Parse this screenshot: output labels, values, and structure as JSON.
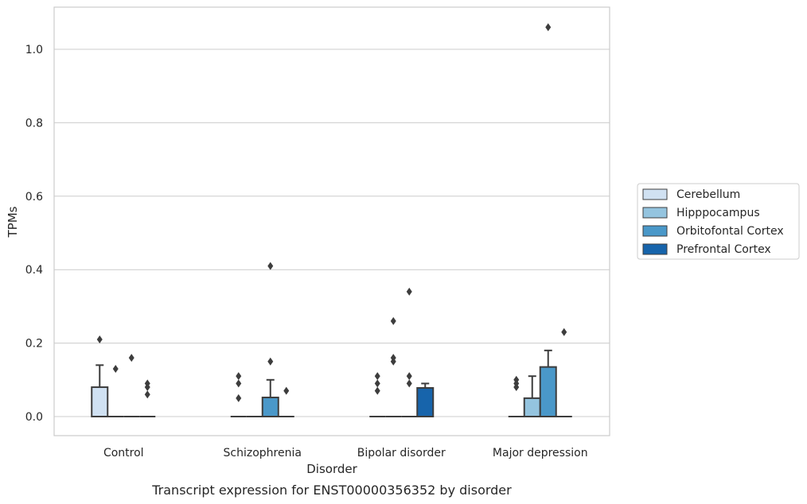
{
  "chart_data": {
    "type": "box",
    "title": "",
    "caption": "Transcript expression for ENST00000356352 by disorder",
    "xlabel": "Disorder",
    "ylabel": "TPMs",
    "ylim": [
      -0.05,
      1.115
    ],
    "yticks": [
      0.0,
      0.2,
      0.4,
      0.6,
      0.8,
      1.0
    ],
    "ytick_labels": [
      "0.0",
      "0.2",
      "0.4",
      "0.6",
      "0.8",
      "1.0"
    ],
    "grid": "horizontal",
    "legend_position": "right",
    "categories": [
      "Control",
      "Schizophrenia",
      "Bipolar disorder",
      "Major depression"
    ],
    "series": [
      {
        "name": "Cerebellum",
        "color": "#d0e1f2",
        "boxes": [
          {
            "q1": 0.0,
            "median": 0.0,
            "q3": 0.08,
            "whisker_low": 0.0,
            "whisker_high": 0.14,
            "outliers": [
              0.21
            ]
          },
          {
            "q1": 0.0,
            "median": 0.0,
            "q3": 0.0,
            "whisker_low": 0.0,
            "whisker_high": 0.0,
            "outliers": [
              0.11,
              0.09,
              0.05
            ]
          },
          {
            "q1": 0.0,
            "median": 0.0,
            "q3": 0.0,
            "whisker_low": 0.0,
            "whisker_high": 0.0,
            "outliers": [
              0.11,
              0.09,
              0.07
            ]
          },
          {
            "q1": 0.0,
            "median": 0.0,
            "q3": 0.0,
            "whisker_low": 0.0,
            "whisker_high": 0.0,
            "outliers": [
              0.1,
              0.09,
              0.08
            ]
          }
        ]
      },
      {
        "name": "Hipppocampus",
        "color": "#94c4df",
        "boxes": [
          {
            "q1": 0.0,
            "median": 0.0,
            "q3": 0.0,
            "whisker_low": 0.0,
            "whisker_high": 0.0,
            "outliers": [
              0.13
            ]
          },
          {
            "q1": 0.0,
            "median": 0.0,
            "q3": 0.0,
            "whisker_low": 0.0,
            "whisker_high": 0.0,
            "outliers": []
          },
          {
            "q1": 0.0,
            "median": 0.0,
            "q3": 0.0,
            "whisker_low": 0.0,
            "whisker_high": 0.0,
            "outliers": [
              0.26,
              0.16,
              0.15
            ]
          },
          {
            "q1": 0.0,
            "median": 0.0,
            "q3": 0.05,
            "whisker_low": 0.0,
            "whisker_high": 0.11,
            "outliers": []
          }
        ]
      },
      {
        "name": "Orbitofontal Cortex",
        "color": "#4a98c9",
        "boxes": [
          {
            "q1": 0.0,
            "median": 0.0,
            "q3": 0.0,
            "whisker_low": 0.0,
            "whisker_high": 0.0,
            "outliers": [
              0.16
            ]
          },
          {
            "q1": 0.0,
            "median": 0.0,
            "q3": 0.052,
            "whisker_low": 0.0,
            "whisker_high": 0.1,
            "outliers": [
              0.41,
              0.15
            ]
          },
          {
            "q1": 0.0,
            "median": 0.0,
            "q3": 0.0,
            "whisker_low": 0.0,
            "whisker_high": 0.0,
            "outliers": [
              0.34,
              0.11,
              0.09
            ]
          },
          {
            "q1": 0.0,
            "median": 0.0,
            "q3": 0.135,
            "whisker_low": 0.0,
            "whisker_high": 0.18,
            "outliers": [
              1.06
            ]
          }
        ]
      },
      {
        "name": "Prefrontal Cortex",
        "color": "#1764ab",
        "boxes": [
          {
            "q1": 0.0,
            "median": 0.0,
            "q3": 0.0,
            "whisker_low": 0.0,
            "whisker_high": 0.0,
            "outliers": [
              0.09,
              0.08,
              0.06
            ]
          },
          {
            "q1": 0.0,
            "median": 0.0,
            "q3": 0.0,
            "whisker_low": 0.0,
            "whisker_high": 0.0,
            "outliers": [
              0.07
            ]
          },
          {
            "q1": 0.0,
            "median": 0.0,
            "q3": 0.078,
            "whisker_low": 0.0,
            "whisker_high": 0.09,
            "outliers": []
          },
          {
            "q1": 0.0,
            "median": 0.0,
            "q3": 0.0,
            "whisker_low": 0.0,
            "whisker_high": 0.0,
            "outliers": [
              0.23
            ]
          }
        ]
      }
    ]
  }
}
